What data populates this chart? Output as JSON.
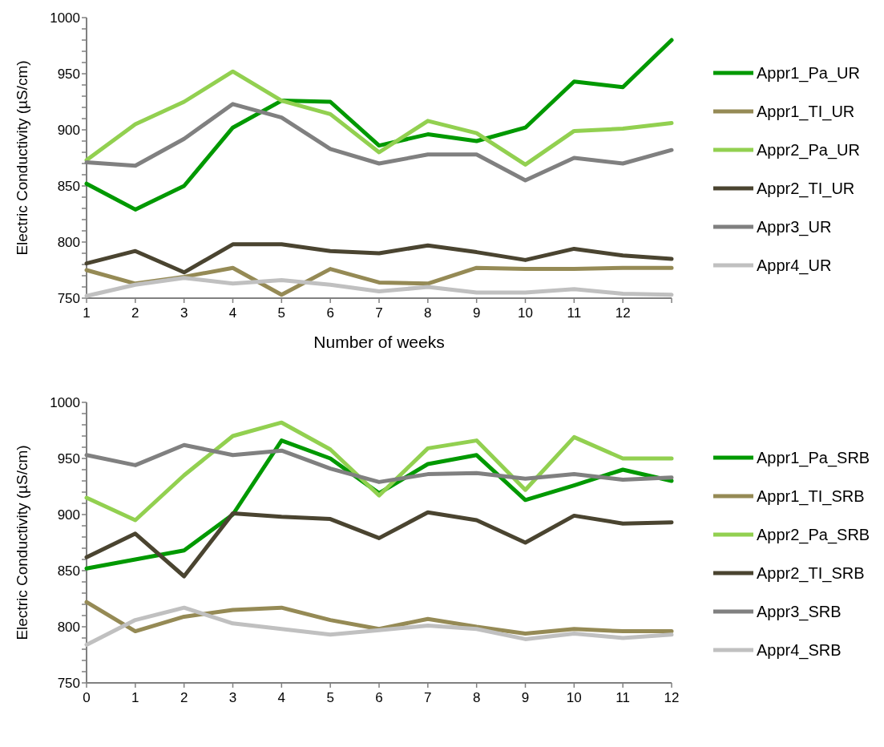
{
  "chart_data": [
    {
      "type": "line",
      "xlabel": "Number of weeks",
      "ylabel": "Electric Conductivity (µS/cm)",
      "legend": "right",
      "grid": false,
      "x": [
        1,
        2,
        3,
        4,
        5,
        6,
        7,
        8,
        9,
        10,
        11,
        12,
        13
      ],
      "xlim": [
        1,
        13
      ],
      "xticks": [
        1,
        2,
        3,
        4,
        5,
        6,
        7,
        8,
        9,
        10,
        11,
        12,
        {
          "value": 13,
          "label": null
        }
      ],
      "ylim": [
        750,
        1000
      ],
      "yticks": [
        750,
        {
          "value": 760,
          "label": null
        },
        {
          "value": 770,
          "label": null
        },
        {
          "value": 780,
          "label": null
        },
        {
          "value": 790,
          "label": null
        },
        800,
        {
          "value": 810,
          "label": null
        },
        {
          "value": 820,
          "label": null
        },
        {
          "value": 830,
          "label": null
        },
        {
          "value": 840,
          "label": null
        },
        850,
        {
          "value": 860,
          "label": null
        },
        {
          "value": 870,
          "label": null
        },
        {
          "value": 880,
          "label": null
        },
        {
          "value": 890,
          "label": null
        },
        900,
        {
          "value": 910,
          "label": null
        },
        {
          "value": 920,
          "label": null
        },
        {
          "value": 930,
          "label": null
        },
        {
          "value": 940,
          "label": null
        },
        950,
        {
          "value": 960,
          "label": null
        },
        {
          "value": 970,
          "label": null
        },
        {
          "value": 980,
          "label": null
        },
        {
          "value": 990,
          "label": null
        },
        1000
      ],
      "series": [
        {
          "name": "Appr1_Pa_UR",
          "color": "#009900",
          "values": [
            852,
            829,
            850,
            902,
            926,
            925,
            886,
            896,
            890,
            902,
            943,
            938,
            980
          ]
        },
        {
          "name": "Appr1_TI_UR",
          "color": "#958a55",
          "values": [
            775,
            763,
            769,
            777,
            753,
            776,
            764,
            763,
            777,
            776,
            776,
            777,
            777
          ]
        },
        {
          "name": "Appr2_Pa_UR",
          "color": "#92d050",
          "values": [
            873,
            905,
            925,
            952,
            926,
            914,
            880,
            908,
            897,
            869,
            899,
            901,
            906
          ]
        },
        {
          "name": "Appr2_TI_UR",
          "color": "#4a4430",
          "values": [
            781,
            792,
            773,
            798,
            798,
            792,
            790,
            797,
            791,
            784,
            794,
            788,
            785
          ]
        },
        {
          "name": "Appr3_UR",
          "color": "#808080",
          "values": [
            871,
            868,
            892,
            923,
            911,
            883,
            870,
            878,
            878,
            855,
            875,
            870,
            882
          ]
        },
        {
          "name": "Appr4_UR",
          "color": "#c0c0c0",
          "values": [
            752,
            762,
            768,
            763,
            766,
            762,
            756,
            760,
            755,
            755,
            758,
            754,
            753
          ]
        }
      ]
    },
    {
      "type": "line",
      "ylabel": "Electric Conductivity (µS/cm)",
      "legend": "right",
      "grid": false,
      "x": [
        0,
        1,
        2,
        3,
        4,
        5,
        6,
        7,
        8,
        9,
        10,
        11,
        12
      ],
      "xlim": [
        0,
        12
      ],
      "xticks": [
        0,
        1,
        2,
        3,
        4,
        5,
        6,
        7,
        8,
        9,
        10,
        11,
        12
      ],
      "ylim": [
        750,
        1000
      ],
      "yticks": [
        750,
        {
          "value": 760,
          "label": null
        },
        {
          "value": 770,
          "label": null
        },
        {
          "value": 780,
          "label": null
        },
        {
          "value": 790,
          "label": null
        },
        800,
        {
          "value": 810,
          "label": null
        },
        {
          "value": 820,
          "label": null
        },
        {
          "value": 830,
          "label": null
        },
        {
          "value": 840,
          "label": null
        },
        850,
        {
          "value": 860,
          "label": null
        },
        {
          "value": 870,
          "label": null
        },
        {
          "value": 880,
          "label": null
        },
        {
          "value": 890,
          "label": null
        },
        900,
        {
          "value": 910,
          "label": null
        },
        {
          "value": 920,
          "label": null
        },
        {
          "value": 930,
          "label": null
        },
        {
          "value": 940,
          "label": null
        },
        950,
        {
          "value": 960,
          "label": null
        },
        {
          "value": 970,
          "label": null
        },
        {
          "value": 980,
          "label": null
        },
        {
          "value": 990,
          "label": null
        },
        1000
      ],
      "series": [
        {
          "name": "Appr1_Pa_SRB",
          "color": "#009900",
          "values": [
            852,
            860,
            868,
            900,
            966,
            950,
            919,
            945,
            953,
            913,
            926,
            940,
            930
          ]
        },
        {
          "name": "Appr1_TI_SRB",
          "color": "#958a55",
          "values": [
            822,
            796,
            809,
            815,
            817,
            806,
            798,
            807,
            800,
            794,
            798,
            796,
            796
          ]
        },
        {
          "name": "Appr2_Pa_SRB",
          "color": "#92d050",
          "values": [
            915,
            895,
            935,
            970,
            982,
            958,
            917,
            959,
            966,
            922,
            969,
            950,
            950
          ]
        },
        {
          "name": "Appr2_TI_SRB",
          "color": "#4a4430",
          "values": [
            862,
            883,
            845,
            901,
            898,
            896,
            879,
            902,
            895,
            875,
            899,
            892,
            893
          ]
        },
        {
          "name": "Appr3_SRB",
          "color": "#808080",
          "values": [
            953,
            944,
            962,
            953,
            957,
            941,
            929,
            936,
            937,
            932,
            936,
            931,
            933
          ]
        },
        {
          "name": "Appr4_SRB",
          "color": "#c0c0c0",
          "values": [
            784,
            806,
            817,
            803,
            798,
            793,
            797,
            801,
            798,
            789,
            794,
            790,
            793
          ]
        }
      ]
    }
  ]
}
